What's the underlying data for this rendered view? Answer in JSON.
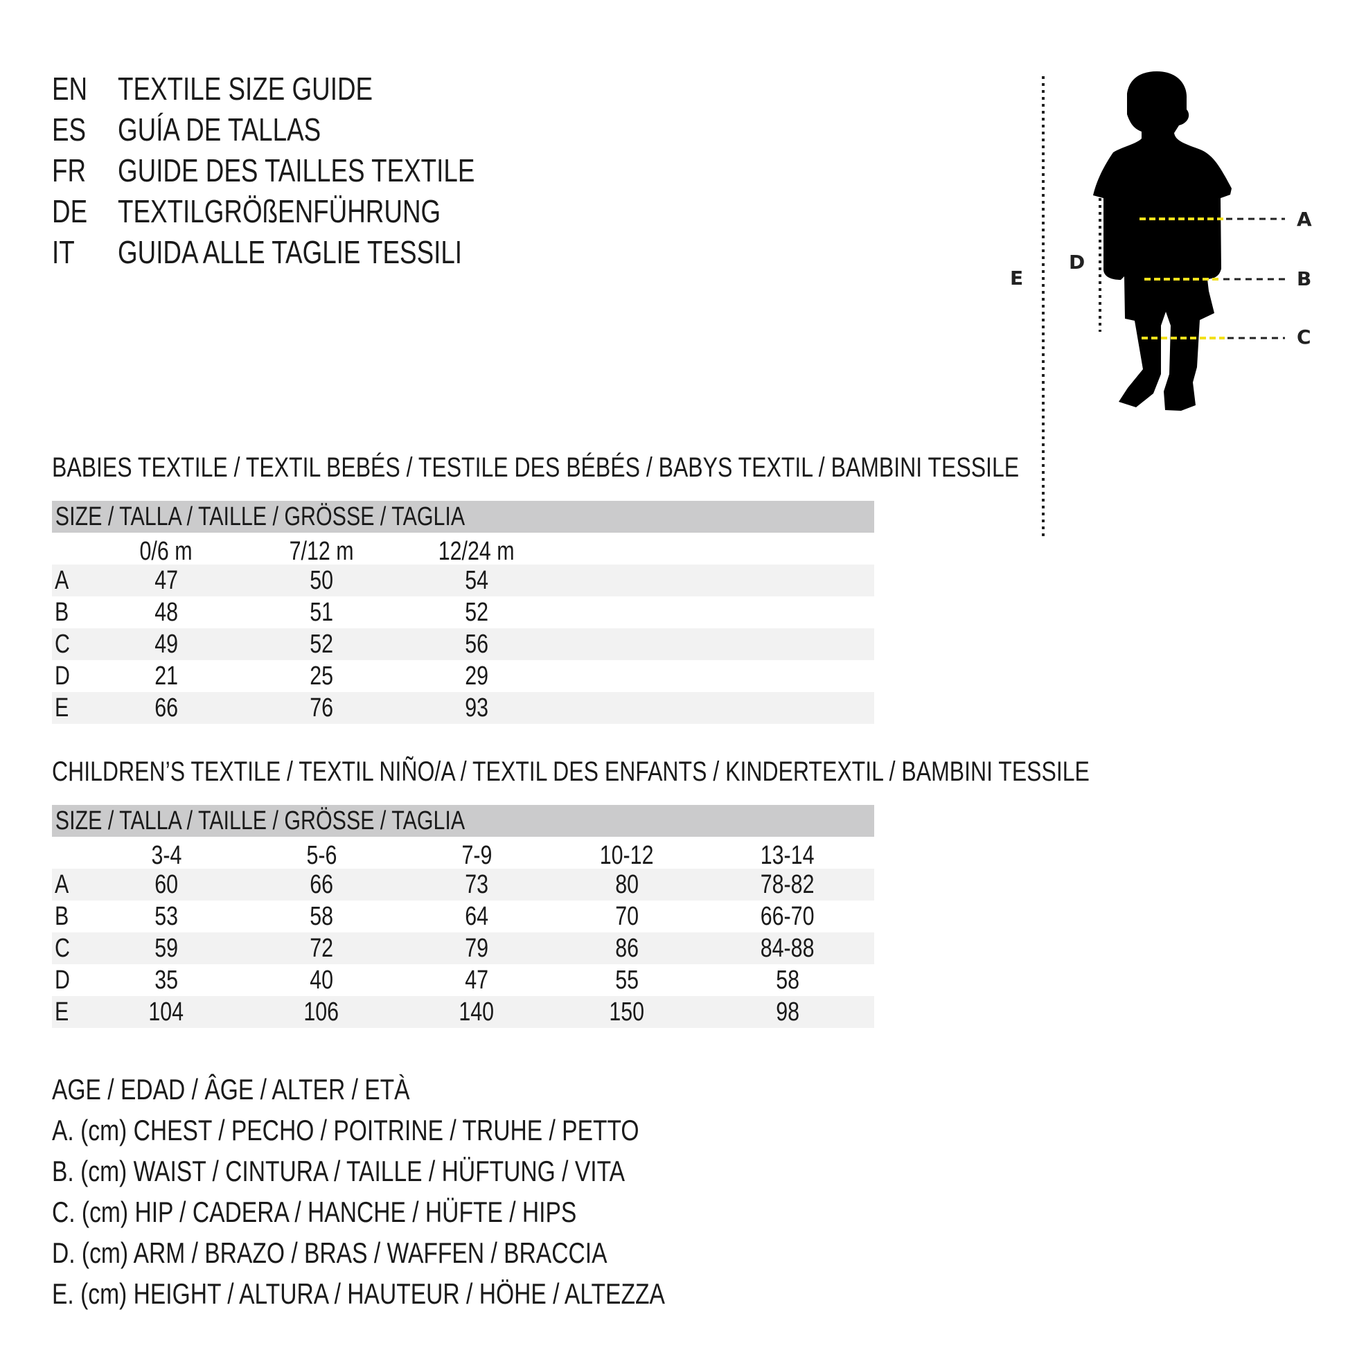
{
  "titles": [
    {
      "lang": "EN",
      "text": "TEXTILE SIZE GUIDE"
    },
    {
      "lang": "ES",
      "text": "GUÍA DE TALLAS"
    },
    {
      "lang": "FR",
      "text": "GUIDE DES TAILLES TEXTILE"
    },
    {
      "lang": "DE",
      "text": "TEXTILGRÖßENFÜHRUNG"
    },
    {
      "lang": "IT",
      "text": "GUIDA ALLE TAGLIE TESSILI"
    }
  ],
  "babies": {
    "heading": "BABIES TEXTILE / TEXTIL BEBÉS / TESTILE DES BÉBÉS / BABYS TEXTIL / BAMBINI TESSILE",
    "size_label": "SIZE / TALLA / TAILLE / GRÖSSE / TAGLIA",
    "columns": [
      "0/6 m",
      "7/12 m",
      "12/24 m"
    ],
    "rows": [
      {
        "label": "A",
        "values": [
          "47",
          "50",
          "54"
        ]
      },
      {
        "label": "B",
        "values": [
          "48",
          "51",
          "52"
        ]
      },
      {
        "label": "C",
        "values": [
          "49",
          "52",
          "56"
        ]
      },
      {
        "label": "D",
        "values": [
          "21",
          "25",
          "29"
        ]
      },
      {
        "label": "E",
        "values": [
          "66",
          "76",
          "93"
        ]
      }
    ]
  },
  "children": {
    "heading": "CHILDREN’S TEXTILE / TEXTIL NIÑO/A / TEXTIL DES ENFANTS / KINDERTEXTIL / BAMBINI TESSILE",
    "size_label": "SIZE / TALLA / TAILLE / GRÖSSE / TAGLIA",
    "columns": [
      "3-4",
      "5-6",
      "7-9",
      "10-12",
      "13-14"
    ],
    "rows": [
      {
        "label": "A",
        "values": [
          "60",
          "66",
          "73",
          "80",
          "78-82"
        ]
      },
      {
        "label": "B",
        "values": [
          "53",
          "58",
          "64",
          "70",
          "66-70"
        ]
      },
      {
        "label": "C",
        "values": [
          "59",
          "72",
          "79",
          "86",
          "84-88"
        ]
      },
      {
        "label": "D",
        "values": [
          "35",
          "40",
          "47",
          "55",
          "58"
        ]
      },
      {
        "label": "E",
        "values": [
          "104",
          "106",
          "140",
          "150",
          "98"
        ]
      }
    ]
  },
  "legend": [
    "AGE / EDAD / ÂGE / ALTER / ETÀ",
    "A. (cm) CHEST / PECHO / POITRINE / TRUHE / PETTO",
    "B. (cm) WAIST / CINTURA / TAILLE / HÜFTUNG / VITA",
    "C. (cm) HIP / CADERA / HANCHE / HÜFTE / HIPS",
    "D. (cm) ARM / BRAZO / BRAS / WAFFEN / BRACCIA",
    "E. (cm) HEIGHT / ALTURA / HAUTEUR / HÖHE / ALTEZZA"
  ],
  "figure": {
    "labels": {
      "A": "A",
      "B": "B",
      "C": "C",
      "D": "D",
      "E": "E"
    },
    "colors": {
      "silhouette": "#000000",
      "measure_line": "#f2e01c",
      "guide_line": "#222222",
      "header_band": "#cbcbcc",
      "row_shade": "#f2f2f2"
    }
  }
}
